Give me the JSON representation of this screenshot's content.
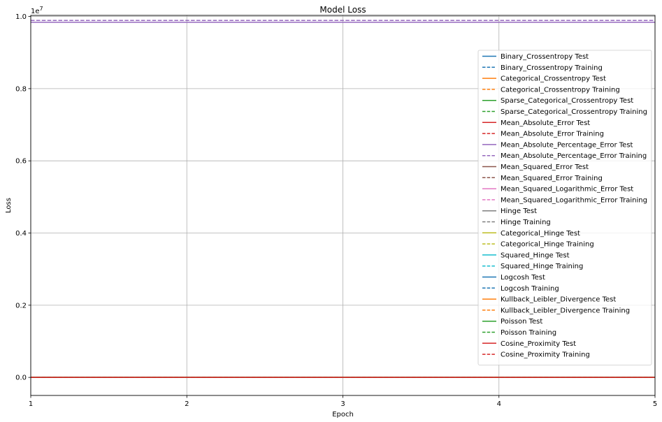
{
  "chart_data": {
    "type": "line",
    "title": "Model Loss",
    "xlabel": "Epoch",
    "ylabel": "Loss",
    "y_offset_label": "1e7",
    "x": [
      1,
      2,
      3,
      4,
      5
    ],
    "xlim": [
      1,
      5
    ],
    "ylim": [
      -0.05,
      1.003
    ],
    "x_ticks": [
      "1",
      "2",
      "3",
      "4",
      "5"
    ],
    "y_ticks": [
      "0.0",
      "0.2",
      "0.4",
      "0.6",
      "0.8",
      "1.0"
    ],
    "grid": true,
    "legend_position": "top-right",
    "series": [
      {
        "name": "Binary_Crossentropy Test",
        "color": "#1f77b4",
        "style": "solid",
        "values": [
          0,
          0,
          0,
          0,
          0
        ]
      },
      {
        "name": "Binary_Crossentropy Training",
        "color": "#1f77b4",
        "style": "dashed",
        "values": [
          0,
          0,
          0,
          0,
          0
        ]
      },
      {
        "name": "Categorical_Crossentropy Test",
        "color": "#ff7f0e",
        "style": "solid",
        "values": [
          0,
          0,
          0,
          0,
          0
        ]
      },
      {
        "name": "Categorical_Crossentropy Training",
        "color": "#ff7f0e",
        "style": "dashed",
        "values": [
          0,
          0,
          0,
          0,
          0
        ]
      },
      {
        "name": "Sparse_Categorical_Crossentropy Test",
        "color": "#2ca02c",
        "style": "solid",
        "values": [
          0,
          0,
          0,
          0,
          0
        ]
      },
      {
        "name": "Sparse_Categorical_Crossentropy Training",
        "color": "#2ca02c",
        "style": "dashed",
        "values": [
          0,
          0,
          0,
          0,
          0
        ]
      },
      {
        "name": "Mean_Absolute_Error Test",
        "color": "#d62728",
        "style": "solid",
        "values": [
          0,
          0,
          0,
          0,
          0
        ]
      },
      {
        "name": "Mean_Absolute_Error Training",
        "color": "#d62728",
        "style": "dashed",
        "values": [
          0,
          0,
          0,
          0,
          0
        ]
      },
      {
        "name": "Mean_Absolute_Percentage_Error Test",
        "color": "#9467bd",
        "style": "solid",
        "values": [
          0.984,
          0.984,
          0.984,
          0.984,
          0.984
        ]
      },
      {
        "name": "Mean_Absolute_Percentage_Error Training",
        "color": "#9467bd",
        "style": "dashed",
        "values": [
          0.989,
          0.989,
          0.989,
          0.989,
          0.989
        ]
      },
      {
        "name": "Mean_Squared_Error Test",
        "color": "#8c564b",
        "style": "solid",
        "values": [
          0,
          0,
          0,
          0,
          0
        ]
      },
      {
        "name": "Mean_Squared_Error Training",
        "color": "#8c564b",
        "style": "dashed",
        "values": [
          0,
          0,
          0,
          0,
          0
        ]
      },
      {
        "name": "Mean_Squared_Logarithmic_Error Test",
        "color": "#e377c2",
        "style": "solid",
        "values": [
          0,
          0,
          0,
          0,
          0
        ]
      },
      {
        "name": "Mean_Squared_Logarithmic_Error Training",
        "color": "#e377c2",
        "style": "dashed",
        "values": [
          0,
          0,
          0,
          0,
          0
        ]
      },
      {
        "name": "Hinge Test",
        "color": "#7f7f7f",
        "style": "solid",
        "values": [
          0,
          0,
          0,
          0,
          0
        ]
      },
      {
        "name": "Hinge Training",
        "color": "#7f7f7f",
        "style": "dashed",
        "values": [
          0,
          0,
          0,
          0,
          0
        ]
      },
      {
        "name": "Categorical_Hinge Test",
        "color": "#bcbd22",
        "style": "solid",
        "values": [
          0,
          0,
          0,
          0,
          0
        ]
      },
      {
        "name": "Categorical_Hinge Training",
        "color": "#bcbd22",
        "style": "dashed",
        "values": [
          0,
          0,
          0,
          0,
          0
        ]
      },
      {
        "name": "Squared_Hinge Test",
        "color": "#17becf",
        "style": "solid",
        "values": [
          0,
          0,
          0,
          0,
          0
        ]
      },
      {
        "name": "Squared_Hinge Training",
        "color": "#17becf",
        "style": "dashed",
        "values": [
          0,
          0,
          0,
          0,
          0
        ]
      },
      {
        "name": "Logcosh Test",
        "color": "#1f77b4",
        "style": "solid",
        "values": [
          0,
          0,
          0,
          0,
          0
        ]
      },
      {
        "name": "Logcosh Training",
        "color": "#1f77b4",
        "style": "dashed",
        "values": [
          0,
          0,
          0,
          0,
          0
        ]
      },
      {
        "name": "Kullback_Leibler_Divergence Test",
        "color": "#ff7f0e",
        "style": "solid",
        "values": [
          0,
          0,
          0,
          0,
          0
        ]
      },
      {
        "name": "Kullback_Leibler_Divergence Training",
        "color": "#ff7f0e",
        "style": "dashed",
        "values": [
          0,
          0,
          0,
          0,
          0
        ]
      },
      {
        "name": "Poisson Test",
        "color": "#2ca02c",
        "style": "solid",
        "values": [
          0,
          0,
          0,
          0,
          0
        ]
      },
      {
        "name": "Poisson Training",
        "color": "#2ca02c",
        "style": "dashed",
        "values": [
          0,
          0,
          0,
          0,
          0
        ]
      },
      {
        "name": "Cosine_Proximity Test",
        "color": "#d62728",
        "style": "solid",
        "values": [
          0,
          0,
          0,
          0,
          0
        ]
      },
      {
        "name": "Cosine_Proximity Training",
        "color": "#d62728",
        "style": "dashed",
        "values": [
          0,
          0,
          0,
          0,
          0
        ]
      }
    ]
  }
}
